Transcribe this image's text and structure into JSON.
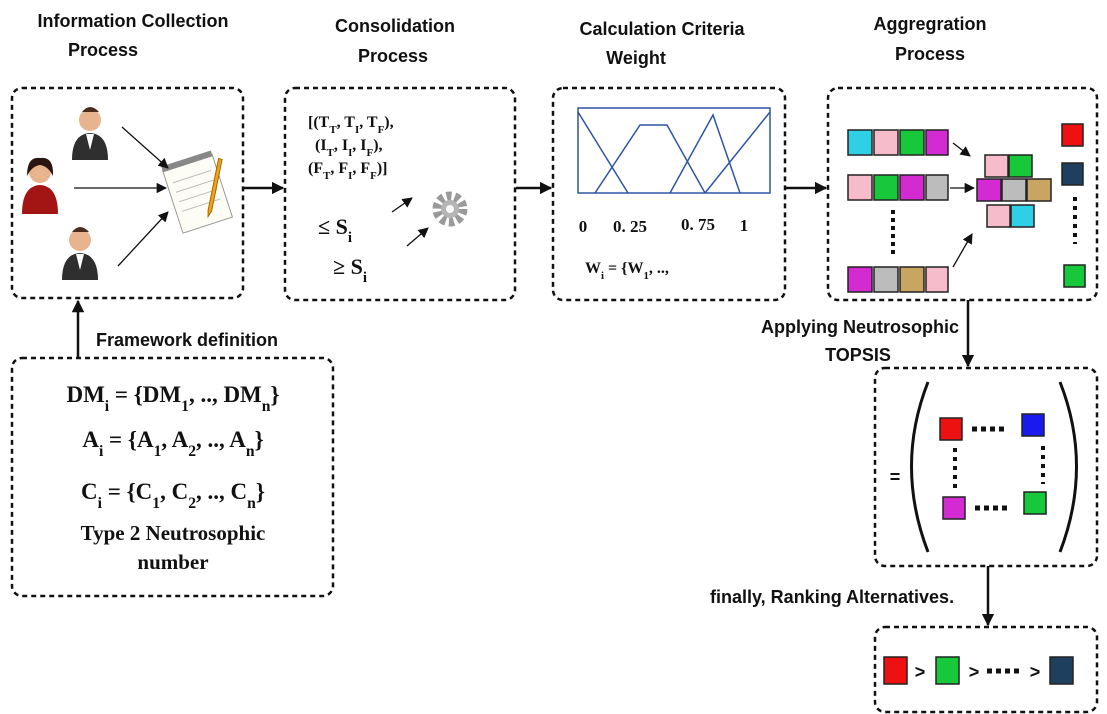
{
  "headings": {
    "collection": [
      "Information Collection",
      "Process"
    ],
    "consolidation": [
      "Consolidation",
      "Process"
    ],
    "weight": [
      "Calculation Criteria",
      "Weight"
    ],
    "aggregation": [
      "Aggregration",
      "Process"
    ]
  },
  "framework": {
    "label": "Framework definition",
    "formulas": [
      [
        {
          "t": "DM"
        },
        {
          "sub": "i"
        },
        {
          "t": " = {DM"
        },
        {
          "sub": "1"
        },
        {
          "t": ", .., DM"
        },
        {
          "sub": "n"
        },
        {
          "t": "}"
        }
      ],
      [
        {
          "t": "A"
        },
        {
          "sub": "i"
        },
        {
          "t": " = {A"
        },
        {
          "sub": "1"
        },
        {
          "t": ", A"
        },
        {
          "sub": "2"
        },
        {
          "t": ", .., A"
        },
        {
          "sub": "n"
        },
        {
          "t": "}"
        }
      ],
      [
        {
          "t": "C"
        },
        {
          "sub": "i"
        },
        {
          "t": " = {C"
        },
        {
          "sub": "1"
        },
        {
          "t": ", C"
        },
        {
          "sub": "2"
        },
        {
          "t": ", .., C"
        },
        {
          "sub": "n"
        },
        {
          "t": "}"
        }
      ]
    ],
    "note": [
      "Type 2 Neutrosophic",
      "number"
    ]
  },
  "consolidation": {
    "formulas": [
      [
        {
          "t": "[(T"
        },
        {
          "sub": "T"
        },
        {
          "t": ", T"
        },
        {
          "sub": "I"
        },
        {
          "t": ", T"
        },
        {
          "sub": "F"
        },
        {
          "t": "),"
        }
      ],
      [
        {
          "t": "(I"
        },
        {
          "sub": "T"
        },
        {
          "t": ", I"
        },
        {
          "sub": "I"
        },
        {
          "t": ", I"
        },
        {
          "sub": "F"
        },
        {
          "t": "),"
        }
      ],
      [
        {
          "t": "(F"
        },
        {
          "sub": "T"
        },
        {
          "t": ", F"
        },
        {
          "sub": "I"
        },
        {
          "t": ", F"
        },
        {
          "sub": "F"
        },
        {
          "t": ")]"
        }
      ],
      [
        {
          "t": "≤ S"
        },
        {
          "sub": "i"
        }
      ],
      [
        {
          "t": "≥ S"
        },
        {
          "sub": "i"
        }
      ]
    ]
  },
  "weight": {
    "axis_labels": [
      "0",
      "0. 25",
      "0. 75",
      "1"
    ],
    "formula": [
      {
        "t": "W"
      },
      {
        "sub": "i"
      },
      {
        "t": " = {W"
      },
      {
        "sub": "1"
      },
      {
        "t": ", .., "
      }
    ]
  },
  "topsis": {
    "label": [
      "Applying Neutrosophic",
      "TOPSIS"
    ],
    "equals": "="
  },
  "ranking": {
    "label": "finally, Ranking Alternatives.",
    "separators": [
      ">",
      ">",
      ">"
    ]
  }
}
